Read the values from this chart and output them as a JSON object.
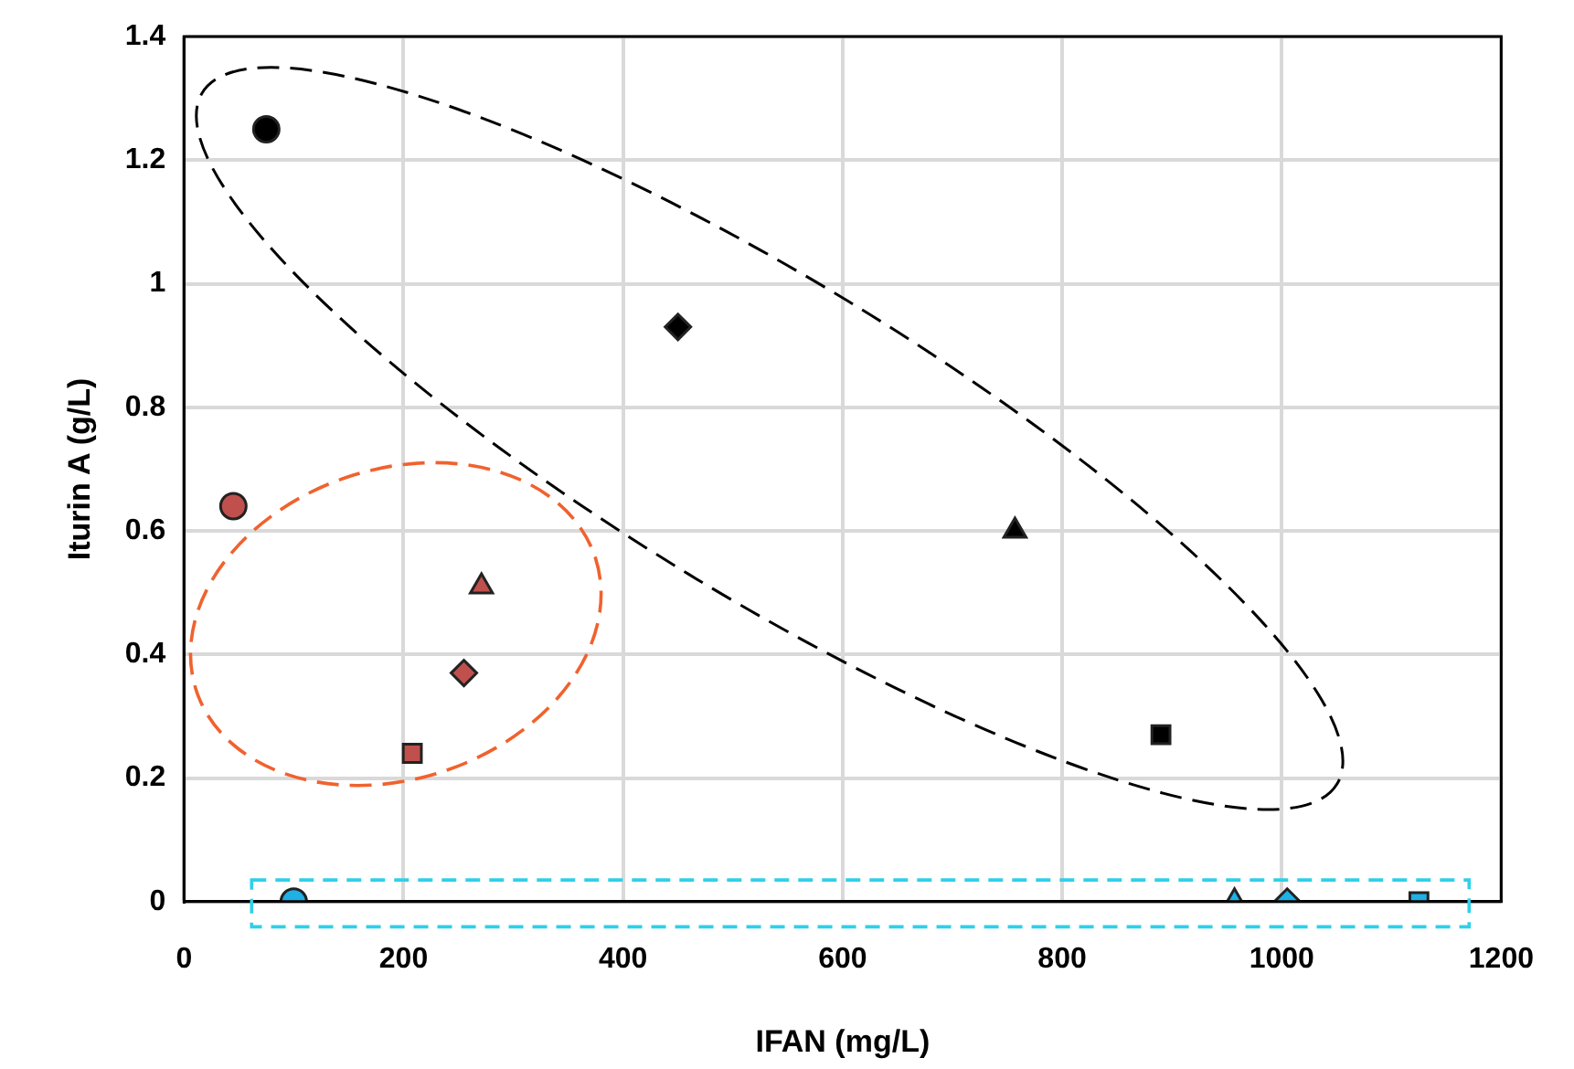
{
  "chart_data": {
    "type": "scatter",
    "xlabel": "IFAN (mg/L)",
    "ylabel": "Iturin A (g/L)",
    "xlim": [
      0,
      1200
    ],
    "xticks": [
      0,
      200,
      400,
      600,
      800,
      1000,
      1200
    ],
    "ylim": [
      0,
      1.4
    ],
    "yticks": [
      0,
      0.2,
      0.4,
      0.6,
      0.8,
      1,
      1.2,
      1.4
    ],
    "grid": true,
    "legend": false,
    "series": [
      {
        "marker": "circle",
        "x": [
          75,
          45,
          100
        ],
        "values": [
          1.25,
          0.64,
          0
        ],
        "colors": [
          "#000000",
          "#c0504d",
          "#1fb0e6"
        ]
      },
      {
        "marker": "diamond",
        "x": [
          450,
          255,
          1005
        ],
        "values": [
          0.93,
          0.37,
          0
        ],
        "colors": [
          "#000000",
          "#c0504d",
          "#1fb0e6"
        ]
      },
      {
        "marker": "triangle",
        "x": [
          757,
          271,
          957
        ],
        "values": [
          0.6,
          0.51,
          0
        ],
        "colors": [
          "#000000",
          "#c0504d",
          "#1fb0e6"
        ]
      },
      {
        "marker": "square",
        "x": [
          890,
          208,
          1125
        ],
        "values": [
          0.27,
          0.24,
          0
        ],
        "colors": [
          "#000000",
          "#c0504d",
          "#1fb0e6"
        ]
      }
    ]
  }
}
